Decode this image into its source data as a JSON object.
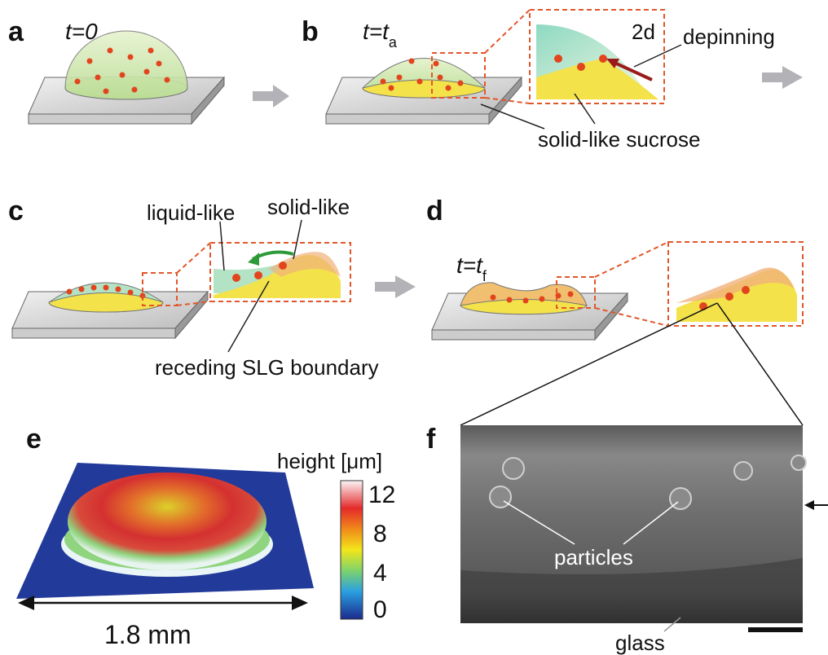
{
  "panels": {
    "a": {
      "label": "a",
      "time": "t=0"
    },
    "b": {
      "label": "b",
      "time": {
        "main": "t=t",
        "sub": "a"
      },
      "inset_label": "2d",
      "arrow_label": "depinning",
      "callout": "solid-like sucrose"
    },
    "c": {
      "label": "c",
      "left_label": "liquid-like",
      "right_label": "solid-like",
      "callout": "receding SLG boundary"
    },
    "d": {
      "label": "d",
      "time": {
        "main": "t=t",
        "sub": "f"
      }
    },
    "e": {
      "label": "e",
      "colorbar_title": "height [μm]",
      "colorbar_ticks": [
        "12",
        "8",
        "4",
        "0"
      ],
      "scale": "1.8 mm"
    },
    "f": {
      "label": "f",
      "particles": "particles",
      "substrate": "glass"
    }
  }
}
